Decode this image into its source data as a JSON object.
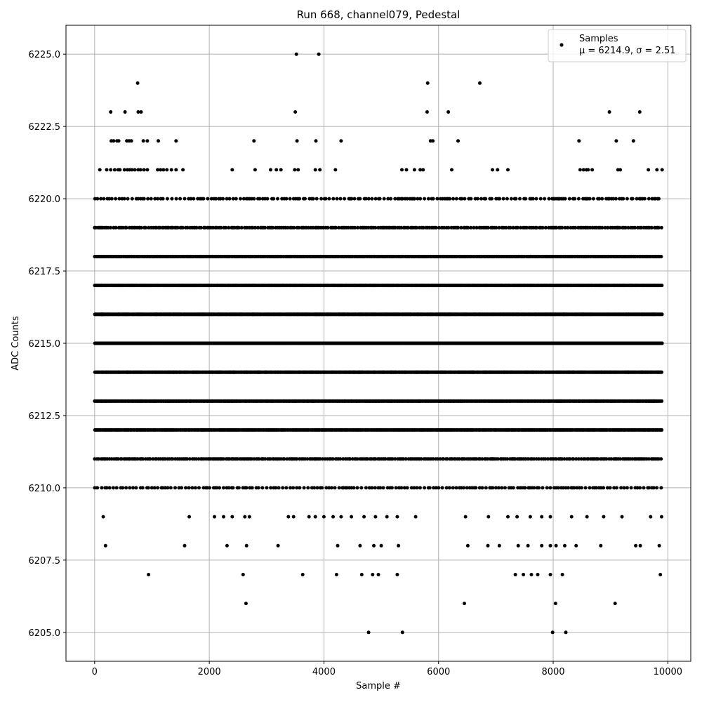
{
  "chart_data": {
    "type": "scatter",
    "title": "Run 668, channel079, Pedestal",
    "xlabel": "Sample #",
    "ylabel": "ADC Counts",
    "xlim": [
      -500,
      10400
    ],
    "ylim": [
      6204,
      6226
    ],
    "grid": true,
    "legend_position": "top-right",
    "x_ticks": [
      "0",
      "2000",
      "4000",
      "6000",
      "8000",
      "10000"
    ],
    "x_tick_values": [
      0,
      2000,
      4000,
      6000,
      8000,
      10000
    ],
    "y_ticks": [
      "6205.0",
      "6207.5",
      "6210.0",
      "6212.5",
      "6215.0",
      "6217.5",
      "6220.0",
      "6222.5",
      "6225.0"
    ],
    "y_tick_values": [
      6205,
      6207.5,
      6210,
      6212.5,
      6215,
      6217.5,
      6220,
      6222.5,
      6225
    ],
    "legend": {
      "series_label": "Samples",
      "stats_label": "μ = 6214.9, σ = 2.51"
    },
    "series": [
      {
        "name": "Samples",
        "color": "#000000",
        "marker": "circle",
        "mean": 6214.9,
        "sigma": 2.51,
        "n_samples": 9900,
        "rows": [
          {
            "y": 6225,
            "x": [
              3520,
              3910
            ]
          },
          {
            "y": 6224,
            "x": [
              750,
              5810,
              6720
            ]
          },
          {
            "y": 6223,
            "x": [
              280,
              530,
              760,
              810,
              3500,
              5800,
              6170,
              8980,
              9510
            ]
          },
          {
            "y": 6222,
            "x": [
              290,
              330,
              390,
              420,
              560,
              600,
              640,
              850,
              920,
              1110,
              1420,
              2780,
              3530,
              3860,
              4300,
              5860,
              5900,
              6340,
              8450,
              9100,
              9400
            ]
          },
          {
            "y": 6221,
            "x": [
              90,
              210,
              280,
              350,
              410,
              440,
              520,
              570,
              610,
              650,
              700,
              760,
              800,
              860,
              920,
              1100,
              1150,
              1200,
              1260,
              1340,
              1420,
              1540,
              2400,
              2800,
              3070,
              3170,
              3250,
              3490,
              3550,
              3850,
              3930,
              4200,
              5360,
              5440,
              5580,
              5680,
              5730,
              6230,
              6940,
              7030,
              7210,
              8470,
              8530,
              8580,
              8610,
              8680,
              9130,
              9170,
              9660,
              9810,
              9900
            ]
          }
        ],
        "dense_band": {
          "y_from": 6210,
          "y_to": 6220,
          "x_from": 0,
          "x_to": 9900
        },
        "low_outliers": [
          {
            "y": 6209,
            "x": [
              150,
              1650,
              2090,
              2250,
              2400,
              2620,
              2700,
              3380,
              3470,
              3740,
              3850,
              4000,
              4160,
              4300,
              4480,
              4700,
              4900,
              5100,
              5280,
              5600,
              6470,
              6870,
              7210,
              7370,
              7600,
              7800,
              7950,
              8320,
              8590,
              8880,
              9200,
              9700,
              9890
            ]
          },
          {
            "y": 6208,
            "x": [
              190,
              1570,
              2310,
              2650,
              3200,
              4240,
              4630,
              4870,
              5000,
              5300,
              6510,
              6860,
              7060,
              7390,
              7560,
              7800,
              7950,
              8050,
              8200,
              8400,
              8830,
              9440,
              9520,
              9850
            ]
          },
          {
            "y": 6207,
            "x": [
              940,
              2590,
              3630,
              4220,
              4660,
              4850,
              4950,
              5280,
              7340,
              7480,
              7620,
              7730,
              7950,
              8160,
              9870
            ]
          },
          {
            "y": 6206,
            "x": [
              2640,
              6450,
              8040,
              9080
            ]
          },
          {
            "y": 6205,
            "x": [
              4780,
              5370,
              7990,
              8220
            ]
          }
        ]
      }
    ]
  }
}
